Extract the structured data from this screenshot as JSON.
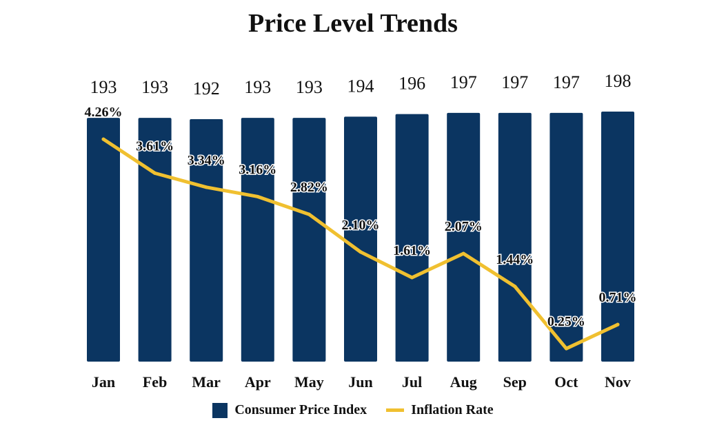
{
  "chart_data": {
    "type": "bar+line",
    "title": "Price Level Trends",
    "categories": [
      "Jan",
      "Feb",
      "Mar",
      "Apr",
      "May",
      "Jun",
      "Jul",
      "Aug",
      "Sep",
      "Oct",
      "Nov"
    ],
    "series": [
      {
        "name": "Consumer Price Index",
        "type": "bar",
        "values": [
          193,
          193,
          192,
          193,
          193,
          194,
          196,
          197,
          197,
          197,
          198
        ],
        "labels": [
          "193",
          "193",
          "192",
          "193",
          "193",
          "194",
          "196",
          "197",
          "197",
          "197",
          "198"
        ],
        "color": "#0b3561"
      },
      {
        "name": "Inflation Rate",
        "type": "line",
        "values": [
          4.26,
          3.61,
          3.34,
          3.16,
          2.82,
          2.1,
          1.61,
          2.07,
          1.44,
          0.25,
          0.71
        ],
        "labels": [
          "4.26%",
          "3.61%",
          "3.34%",
          "3.16%",
          "2.82%",
          "2.10%",
          "1.61%",
          "2.07%",
          "1.44%",
          "0.25%",
          "0.71%"
        ],
        "color": "#f0c030"
      }
    ],
    "bar_axis_range": [
      0,
      198
    ],
    "line_axis_range": [
      0,
      4.5
    ],
    "legend": [
      "Consumer Price Index",
      "Inflation Rate"
    ],
    "legend_position": "bottom",
    "grid": false
  }
}
